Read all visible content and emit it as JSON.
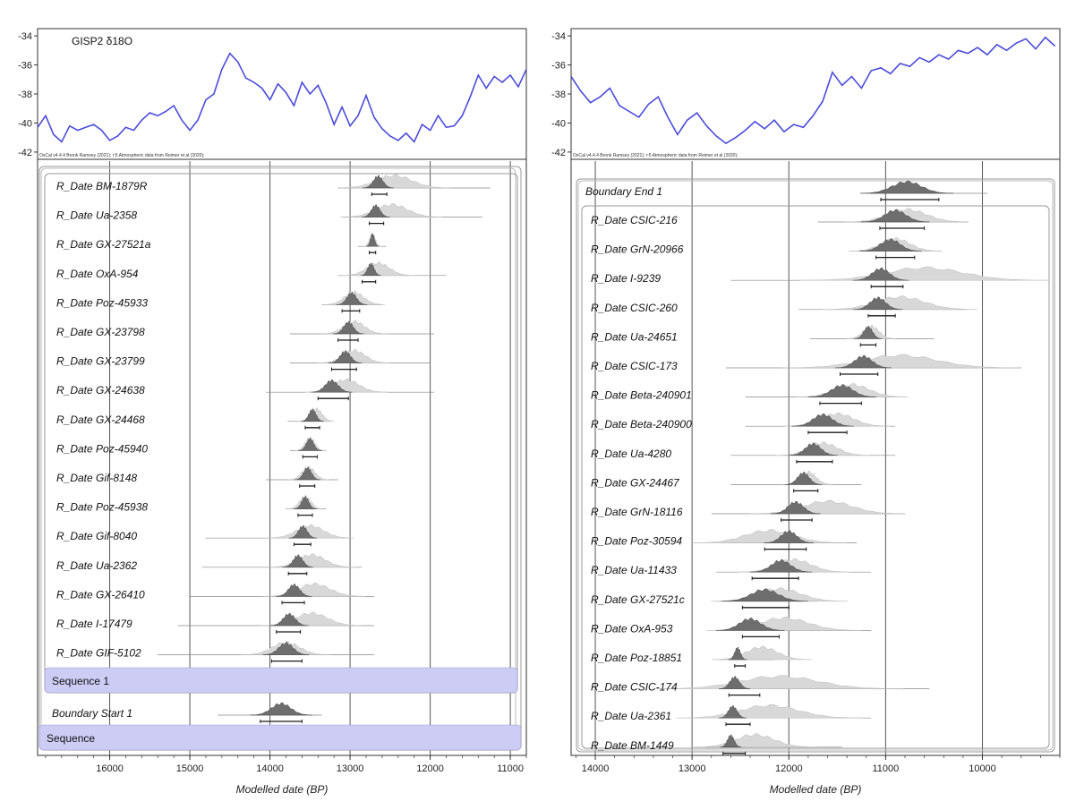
{
  "colors": {
    "climate_line": "#4b4bdb",
    "posterior_fill": "#6e6e6e",
    "prior_fill": "#d8d8d8",
    "range_bar": "#1a1a1a",
    "sequence_band": "#ccccf5",
    "gridline": "#555555",
    "frame": "#333333"
  },
  "chart_data": [
    {
      "type": "line",
      "panel": "left-climate",
      "title": "GISP2 δ18O",
      "credit": "OxCal v4.4.4 Bronk Ramsey (2021); r:5 Atmospheric data from Reimer et al (2020);",
      "xlim": [
        16900,
        10800
      ],
      "ylim": [
        -42.5,
        -33.5
      ],
      "yticks": [
        -34,
        -36,
        -38,
        -40,
        -42
      ],
      "series": [
        {
          "x": [
            16900,
            16800,
            16700,
            16600,
            16500,
            16400,
            16300,
            16200,
            16100,
            16000,
            15900,
            15800,
            15700,
            15600,
            15500,
            15400,
            15300,
            15200,
            15100,
            15000,
            14900,
            14800,
            14700,
            14600,
            14500,
            14400,
            14300,
            14200,
            14100,
            14000,
            13900,
            13800,
            13700,
            13600,
            13500,
            13400,
            13300,
            13200,
            13100,
            13000,
            12900,
            12800,
            12700,
            12600,
            12500,
            12400,
            12300,
            12200,
            12100,
            12000,
            11900,
            11800,
            11700,
            11600,
            11500,
            11400,
            11300,
            11200,
            11100,
            11000,
            10900,
            10800
          ],
          "y": [
            -40.3,
            -39.5,
            -40.8,
            -41.3,
            -40.2,
            -40.5,
            -40.3,
            -40.1,
            -40.5,
            -41.2,
            -40.9,
            -40.3,
            -40.5,
            -39.8,
            -39.3,
            -39.5,
            -39.2,
            -38.8,
            -39.8,
            -40.5,
            -39.8,
            -38.4,
            -38.0,
            -36.3,
            -35.2,
            -35.8,
            -36.9,
            -37.2,
            -37.6,
            -38.4,
            -37.3,
            -37.9,
            -38.8,
            -37.2,
            -38.0,
            -37.4,
            -38.6,
            -40.1,
            -38.9,
            -40.2,
            -39.5,
            -38.1,
            -39.6,
            -40.4,
            -40.9,
            -41.2,
            -40.7,
            -41.3,
            -40.1,
            -40.5,
            -39.5,
            -40.3,
            -40.2,
            -39.5,
            -38.2,
            -36.7,
            -37.6,
            -36.8,
            -37.2,
            -36.7,
            -37.5,
            -36.3
          ]
        }
      ]
    },
    {
      "type": "line",
      "panel": "right-climate",
      "credit": "OxCal v4.4.4 Bronk Ramsey (2021); r:5 Atmospheric data from Reimer et al (2020);",
      "xlim": [
        14250,
        9200
      ],
      "ylim": [
        -42.5,
        -33.5
      ],
      "yticks": [
        -34,
        -36,
        -38,
        -40,
        -42
      ],
      "series": [
        {
          "x": [
            14250,
            14150,
            14050,
            13950,
            13850,
            13750,
            13650,
            13550,
            13450,
            13350,
            13250,
            13150,
            13050,
            12950,
            12850,
            12750,
            12650,
            12550,
            12450,
            12350,
            12250,
            12150,
            12050,
            11950,
            11850,
            11750,
            11650,
            11550,
            11450,
            11350,
            11250,
            11150,
            11050,
            10950,
            10850,
            10750,
            10650,
            10550,
            10450,
            10350,
            10250,
            10150,
            10050,
            9950,
            9850,
            9750,
            9650,
            9550,
            9450,
            9350,
            9250
          ],
          "y": [
            -36.8,
            -37.8,
            -38.6,
            -38.2,
            -37.6,
            -38.8,
            -39.2,
            -39.6,
            -38.7,
            -38.2,
            -39.6,
            -40.8,
            -39.8,
            -39.3,
            -40.2,
            -40.9,
            -41.4,
            -41.0,
            -40.5,
            -39.9,
            -40.4,
            -39.8,
            -40.6,
            -40.1,
            -40.3,
            -39.5,
            -38.5,
            -36.5,
            -37.4,
            -36.8,
            -37.6,
            -36.4,
            -36.2,
            -36.6,
            -35.9,
            -36.1,
            -35.5,
            -35.8,
            -35.3,
            -35.6,
            -35.0,
            -35.2,
            -34.8,
            -35.3,
            -34.6,
            -35.0,
            -34.5,
            -34.2,
            -34.9,
            -34.1,
            -34.7
          ]
        }
      ]
    },
    {
      "type": "density-ridge",
      "panel": "left-model",
      "xlabel": "Modelled date (BP)",
      "xlim": [
        16900,
        10800
      ],
      "xticks": [
        16000,
        15000,
        14000,
        13000,
        12000,
        11000
      ],
      "rows": [
        {
          "label": "R_Date BM-1879R",
          "mu": 12650,
          "sd": 60,
          "prior_mu": 12450,
          "prior_sd": 220,
          "range": [
            12730,
            12540
          ],
          "line": [
            13150,
            11250
          ]
        },
        {
          "label": "R_Date Ua-2358",
          "mu": 12680,
          "sd": 55,
          "prior_mu": 12480,
          "prior_sd": 200,
          "range": [
            12760,
            12580
          ],
          "line": [
            13100,
            11350
          ]
        },
        {
          "label": "R_Date GX-27521a",
          "mu": 12720,
          "sd": 25,
          "prior_mu": 12720,
          "prior_sd": 35,
          "range": [
            12760,
            12680
          ],
          "line": [
            12900,
            12550
          ]
        },
        {
          "label": "R_Date OxA-954",
          "mu": 12740,
          "sd": 40,
          "prior_mu": 12650,
          "prior_sd": 140,
          "range": [
            12850,
            12680
          ],
          "line": [
            13150,
            11800
          ]
        },
        {
          "label": "R_Date Poz-45933",
          "mu": 12980,
          "sd": 60,
          "prior_mu": 12950,
          "prior_sd": 120,
          "range": [
            13100,
            12880
          ],
          "line": [
            13350,
            12600
          ]
        },
        {
          "label": "R_Date GX-23798",
          "mu": 13020,
          "sd": 60,
          "prior_mu": 12950,
          "prior_sd": 130,
          "range": [
            13150,
            12900
          ],
          "line": [
            13750,
            11950
          ]
        },
        {
          "label": "R_Date GX-23799",
          "mu": 13060,
          "sd": 65,
          "prior_mu": 12950,
          "prior_sd": 140,
          "range": [
            13230,
            12920
          ],
          "line": [
            13750,
            12000
          ]
        },
        {
          "label": "R_Date GX-24638",
          "mu": 13230,
          "sd": 80,
          "prior_mu": 13050,
          "prior_sd": 160,
          "range": [
            13400,
            13020
          ],
          "line": [
            14050,
            11950
          ]
        },
        {
          "label": "R_Date GX-24468",
          "mu": 13470,
          "sd": 45,
          "prior_mu": 13420,
          "prior_sd": 70,
          "range": [
            13560,
            13380
          ],
          "line": [
            13780,
            13250
          ]
        },
        {
          "label": "R_Date Poz-45940",
          "mu": 13500,
          "sd": 45,
          "prior_mu": 13500,
          "prior_sd": 60,
          "range": [
            13590,
            13410
          ],
          "line": [
            13750,
            13300
          ]
        },
        {
          "label": "R_Date Gif-8148",
          "mu": 13530,
          "sd": 50,
          "prior_mu": 13520,
          "prior_sd": 80,
          "range": [
            13630,
            13440
          ],
          "line": [
            14050,
            13150
          ]
        },
        {
          "label": "R_Date Poz-45938",
          "mu": 13560,
          "sd": 45,
          "prior_mu": 13560,
          "prior_sd": 70,
          "range": [
            13650,
            13470
          ],
          "line": [
            13800,
            13300
          ]
        },
        {
          "label": "R_Date Gif-8040",
          "mu": 13590,
          "sd": 55,
          "prior_mu": 13500,
          "prior_sd": 170,
          "range": [
            13700,
            13490
          ],
          "line": [
            14800,
            13050
          ]
        },
        {
          "label": "R_Date Ua-2362",
          "mu": 13650,
          "sd": 60,
          "prior_mu": 13480,
          "prior_sd": 170,
          "range": [
            13770,
            13540
          ],
          "line": [
            14850,
            12850
          ]
        },
        {
          "label": "R_Date GX-26410",
          "mu": 13700,
          "sd": 70,
          "prior_mu": 13450,
          "prior_sd": 200,
          "range": [
            13850,
            13570
          ],
          "line": [
            15000,
            12700
          ]
        },
        {
          "label": "R_Date I-17479",
          "mu": 13760,
          "sd": 75,
          "prior_mu": 13480,
          "prior_sd": 200,
          "range": [
            13920,
            13620
          ],
          "line": [
            15150,
            12700
          ]
        },
        {
          "label": "R_Date GIF-5102",
          "mu": 13800,
          "sd": 90,
          "prior_mu": 13800,
          "prior_sd": 170,
          "range": [
            13980,
            13600
          ],
          "line": [
            15400,
            12700
          ]
        }
      ],
      "group_label": "Sequence 1",
      "boundary": {
        "label": "Boundary Start 1",
        "mu": 13860,
        "sd": 120,
        "range": [
          14120,
          13600
        ],
        "line": [
          14650,
          13350
        ]
      },
      "outer_label": "Sequence"
    },
    {
      "type": "density-ridge",
      "panel": "right-model",
      "xlabel": "Modelled date (BP)",
      "xlim": [
        14250,
        9200
      ],
      "xticks": [
        14000,
        13000,
        12000,
        11000,
        10000
      ],
      "boundary": {
        "label": "Boundary End 1",
        "mu": 10780,
        "sd": 150,
        "range": [
          11050,
          10450
        ],
        "line": [
          11200,
          9950
        ]
      },
      "rows": [
        {
          "label": "R_Date CSIC-216",
          "mu": 10900,
          "sd": 110,
          "prior_mu": 10780,
          "prior_sd": 200,
          "range": [
            11060,
            10600
          ],
          "line": [
            11700,
            10150
          ]
        },
        {
          "label": "R_Date GrN-20966",
          "mu": 10950,
          "sd": 100,
          "prior_mu": 10900,
          "prior_sd": 150,
          "range": [
            11100,
            10700
          ],
          "line": [
            11250,
            10500
          ]
        },
        {
          "label": "R_Date I-9239",
          "mu": 11050,
          "sd": 90,
          "prior_mu": 10600,
          "prior_sd": 400,
          "range": [
            11150,
            10820
          ],
          "line": [
            12600,
            9600
          ]
        },
        {
          "label": "R_Date CSIC-260",
          "mu": 11080,
          "sd": 80,
          "prior_mu": 10850,
          "prior_sd": 250,
          "range": [
            11180,
            10900
          ],
          "line": [
            11900,
            10150
          ]
        },
        {
          "label": "R_Date Ua-24651",
          "mu": 11180,
          "sd": 45,
          "prior_mu": 11150,
          "prior_sd": 80,
          "range": [
            11260,
            11100
          ],
          "line": [
            11780,
            10500
          ]
        },
        {
          "label": "R_Date CSIC-173",
          "mu": 11230,
          "sd": 90,
          "prior_mu": 10850,
          "prior_sd": 380,
          "range": [
            11470,
            11080
          ],
          "line": [
            12650,
            9600
          ]
        },
        {
          "label": "R_Date Beta-240901",
          "mu": 11450,
          "sd": 110,
          "prior_mu": 11350,
          "prior_sd": 180,
          "range": [
            11680,
            11250
          ],
          "line": [
            12450,
            10900
          ]
        },
        {
          "label": "R_Date Beta-240900",
          "mu": 11650,
          "sd": 100,
          "prior_mu": 11500,
          "prior_sd": 170,
          "range": [
            11800,
            11400
          ],
          "line": [
            12450,
            10900
          ]
        },
        {
          "label": "R_Date Ua-4280",
          "mu": 11750,
          "sd": 80,
          "prior_mu": 11650,
          "prior_sd": 150,
          "range": [
            11920,
            11550
          ],
          "line": [
            12600,
            10900
          ]
        },
        {
          "label": "R_Date GX-24467",
          "mu": 11850,
          "sd": 60,
          "prior_mu": 11800,
          "prior_sd": 80,
          "range": [
            11950,
            11700
          ],
          "line": [
            12600,
            11250
          ]
        },
        {
          "label": "R_Date GrN-18116",
          "mu": 11930,
          "sd": 80,
          "prior_mu": 11600,
          "prior_sd": 250,
          "range": [
            12080,
            11760
          ],
          "line": [
            12800,
            10800
          ]
        },
        {
          "label": "R_Date Poz-30594",
          "mu": 12000,
          "sd": 80,
          "prior_mu": 12200,
          "prior_sd": 250,
          "range": [
            12250,
            11820
          ],
          "line": [
            12700,
            11300
          ]
        },
        {
          "label": "R_Date Ua-11433",
          "mu": 12080,
          "sd": 100,
          "prior_mu": 11950,
          "prior_sd": 180,
          "range": [
            12380,
            11900
          ],
          "line": [
            12750,
            11150
          ]
        },
        {
          "label": "R_Date GX-27521c",
          "mu": 12250,
          "sd": 140,
          "prior_mu": 12100,
          "prior_sd": 220,
          "range": [
            12480,
            12000
          ],
          "line": [
            12750,
            11700
          ]
        },
        {
          "label": "R_Date OxA-953",
          "mu": 12400,
          "sd": 110,
          "prior_mu": 12050,
          "prior_sd": 250,
          "range": [
            12480,
            12100
          ],
          "line": [
            12700,
            11150
          ]
        },
        {
          "label": "R_Date Poz-18851",
          "mu": 12530,
          "sd": 30,
          "prior_mu": 12280,
          "prior_sd": 160,
          "range": [
            12560,
            12450
          ],
          "line": [
            12720,
            12150
          ]
        },
        {
          "label": "R_Date CSIC-174",
          "mu": 12560,
          "sd": 50,
          "prior_mu": 12100,
          "prior_sd": 400,
          "range": [
            12620,
            12300
          ],
          "line": [
            12730,
            10550
          ]
        },
        {
          "label": "R_Date Ua-2361",
          "mu": 12580,
          "sd": 45,
          "prior_mu": 12200,
          "prior_sd": 300,
          "range": [
            12650,
            12400
          ],
          "line": [
            12750,
            11150
          ]
        },
        {
          "label": "R_Date BM-1449",
          "mu": 12600,
          "sd": 35,
          "prior_mu": 12350,
          "prior_sd": 200,
          "range": [
            12680,
            12450
          ],
          "line": [
            12850,
            11450
          ]
        }
      ]
    }
  ]
}
